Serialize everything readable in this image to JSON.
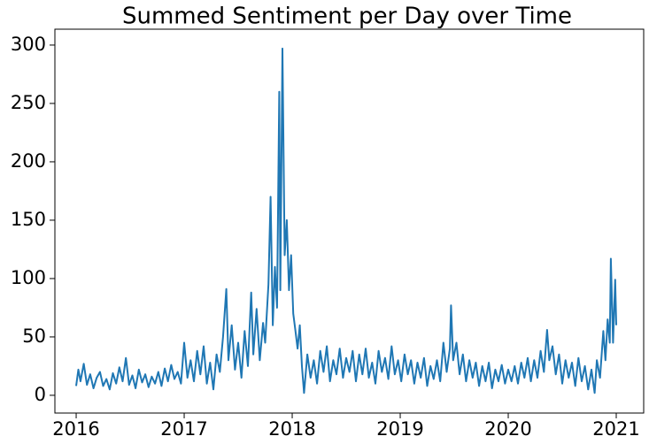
{
  "chart_data": {
    "type": "line",
    "title": "Summed Sentiment per Day over Time",
    "x": [
      2016.0,
      2016.02,
      2016.04,
      2016.07,
      2016.1,
      2016.13,
      2016.16,
      2016.19,
      2016.22,
      2016.25,
      2016.28,
      2016.31,
      2016.34,
      2016.37,
      2016.4,
      2016.43,
      2016.46,
      2016.49,
      2016.52,
      2016.55,
      2016.58,
      2016.61,
      2016.64,
      2016.67,
      2016.7,
      2016.73,
      2016.76,
      2016.79,
      2016.82,
      2016.85,
      2016.88,
      2016.91,
      2016.94,
      2016.97,
      2017.0,
      2017.03,
      2017.06,
      2017.09,
      2017.12,
      2017.15,
      2017.18,
      2017.21,
      2017.24,
      2017.27,
      2017.3,
      2017.33,
      2017.36,
      2017.39,
      2017.41,
      2017.44,
      2017.47,
      2017.5,
      2017.53,
      2017.56,
      2017.59,
      2017.62,
      2017.64,
      2017.67,
      2017.7,
      2017.73,
      2017.75,
      2017.78,
      2017.8,
      2017.82,
      2017.84,
      2017.86,
      2017.88,
      2017.89,
      2017.91,
      2017.93,
      2017.95,
      2017.97,
      2017.99,
      2018.01,
      2018.03,
      2018.05,
      2018.07,
      2018.09,
      2018.11,
      2018.14,
      2018.17,
      2018.2,
      2018.23,
      2018.26,
      2018.29,
      2018.32,
      2018.35,
      2018.38,
      2018.41,
      2018.44,
      2018.47,
      2018.5,
      2018.53,
      2018.56,
      2018.59,
      2018.62,
      2018.65,
      2018.68,
      2018.71,
      2018.74,
      2018.77,
      2018.8,
      2018.83,
      2018.86,
      2018.89,
      2018.92,
      2018.95,
      2018.98,
      2019.01,
      2019.04,
      2019.07,
      2019.1,
      2019.13,
      2019.16,
      2019.19,
      2019.22,
      2019.25,
      2019.28,
      2019.31,
      2019.34,
      2019.37,
      2019.4,
      2019.43,
      2019.46,
      2019.47,
      2019.49,
      2019.52,
      2019.55,
      2019.58,
      2019.61,
      2019.64,
      2019.67,
      2019.7,
      2019.73,
      2019.76,
      2019.79,
      2019.82,
      2019.85,
      2019.88,
      2019.91,
      2019.94,
      2019.97,
      2020.0,
      2020.03,
      2020.06,
      2020.09,
      2020.12,
      2020.15,
      2020.18,
      2020.21,
      2020.24,
      2020.27,
      2020.3,
      2020.33,
      2020.36,
      2020.38,
      2020.41,
      2020.44,
      2020.47,
      2020.5,
      2020.53,
      2020.56,
      2020.59,
      2020.62,
      2020.65,
      2020.68,
      2020.71,
      2020.74,
      2020.77,
      2020.8,
      2020.82,
      2020.85,
      2020.88,
      2020.9,
      2020.92,
      2020.94,
      2020.95,
      2020.97,
      2020.99,
      2021.0
    ],
    "series": [
      {
        "color": "#1f77b4",
        "values": [
          8,
          22,
          12,
          27,
          9,
          18,
          6,
          15,
          20,
          8,
          14,
          5,
          19,
          10,
          24,
          12,
          32,
          9,
          17,
          6,
          22,
          11,
          18,
          7,
          16,
          10,
          20,
          8,
          23,
          12,
          26,
          14,
          20,
          10,
          45,
          15,
          30,
          12,
          38,
          18,
          42,
          10,
          28,
          5,
          35,
          20,
          50,
          91,
          30,
          60,
          22,
          45,
          15,
          55,
          25,
          88,
          35,
          74,
          30,
          62,
          45,
          95,
          170,
          60,
          110,
          75,
          260,
          90,
          297,
          120,
          150,
          90,
          120,
          70,
          55,
          40,
          60,
          25,
          2,
          35,
          15,
          30,
          10,
          38,
          20,
          42,
          12,
          30,
          18,
          40,
          15,
          32,
          20,
          38,
          12,
          35,
          18,
          40,
          15,
          28,
          10,
          38,
          20,
          32,
          14,
          42,
          18,
          30,
          12,
          35,
          18,
          30,
          10,
          28,
          15,
          32,
          8,
          25,
          14,
          30,
          12,
          45,
          20,
          40,
          77,
          30,
          45,
          18,
          35,
          12,
          30,
          15,
          28,
          8,
          25,
          12,
          28,
          6,
          22,
          12,
          26,
          10,
          22,
          12,
          25,
          10,
          28,
          15,
          32,
          12,
          30,
          15,
          38,
          20,
          56,
          30,
          42,
          18,
          35,
          10,
          30,
          15,
          28,
          8,
          32,
          12,
          25,
          5,
          22,
          2,
          30,
          15,
          55,
          30,
          65,
          45,
          117,
          45,
          99,
          60
        ]
      }
    ],
    "xlim": [
      2015.803,
      2021.254
    ],
    "xticks": [
      2016,
      2017,
      2018,
      2019,
      2020,
      2021
    ],
    "ylim": [
      -15.2,
      313.6
    ],
    "yticks": [
      0,
      50,
      100,
      150,
      200,
      250,
      300
    ]
  }
}
